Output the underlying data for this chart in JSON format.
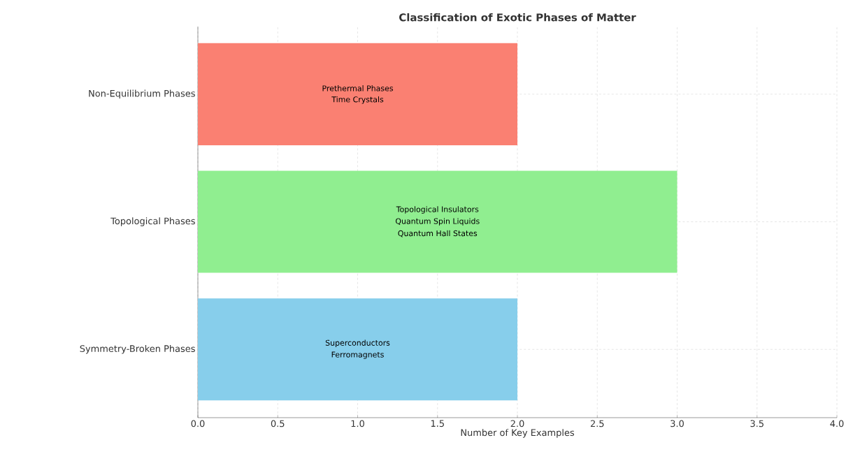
{
  "chart_data": {
    "type": "bar",
    "orientation": "horizontal",
    "title": "Classification of Exotic Phases of Matter",
    "xlabel": "Number of Key Examples",
    "categories": [
      "Non-Equilibrium Phases",
      "Topological Phases",
      "Symmetry-Broken Phases"
    ],
    "values": [
      2,
      3,
      2
    ],
    "colors": [
      "#fa8072",
      "#90ee90",
      "#87ceeb"
    ],
    "xlim": [
      0,
      4
    ],
    "xticks": [
      {
        "value": 0,
        "label": "0.0"
      },
      {
        "value": 0.5,
        "label": "0.5"
      },
      {
        "value": 1,
        "label": "1.0"
      },
      {
        "value": 1.5,
        "label": "1.5"
      },
      {
        "value": 2,
        "label": "2.0"
      },
      {
        "value": 2.5,
        "label": "2.5"
      },
      {
        "value": 3,
        "label": "3.0"
      },
      {
        "value": 3.5,
        "label": "3.5"
      },
      {
        "value": 4,
        "label": "4.0"
      }
    ],
    "grid": true,
    "annotations": [
      "Prethermal Phases",
      "Time Crystals",
      "Topological Insulators",
      "Quantum Spin Liquids",
      "Quantum Hall States",
      "Superconductors",
      "Ferromagnets"
    ]
  }
}
